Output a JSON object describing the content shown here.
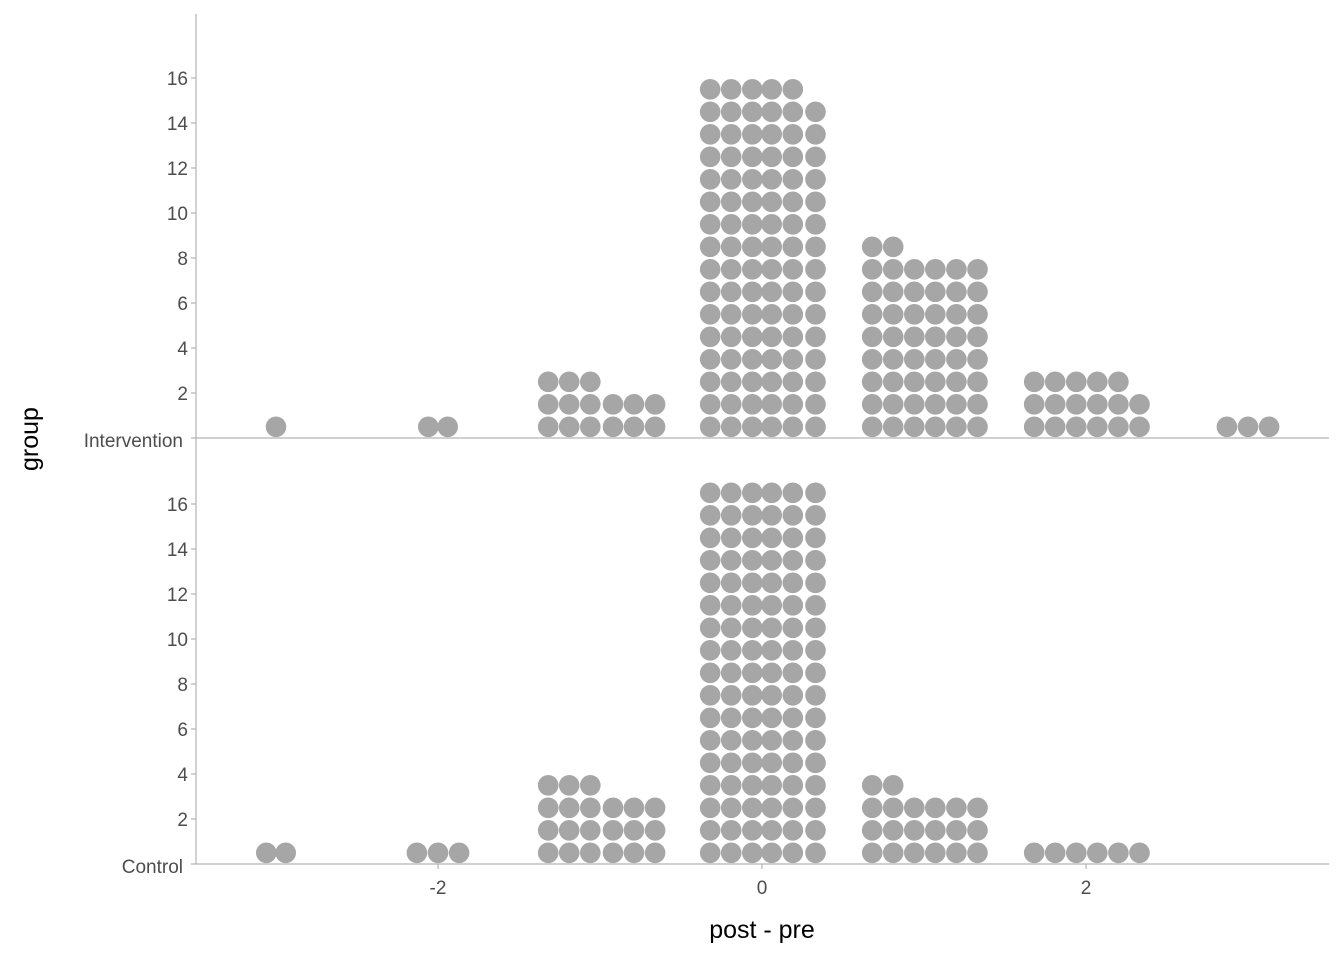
{
  "chart_data": {
    "type": "dotplot",
    "xlabel": "post - pre",
    "ylabel": "group",
    "x_ticks": [
      -2,
      0,
      2
    ],
    "xlim": [
      -3.5,
      3.5
    ],
    "groups": [
      "Control",
      "Intervention"
    ],
    "count_ticks": [
      2,
      4,
      6,
      8,
      10,
      12,
      14,
      16
    ],
    "count_range": [
      0,
      19
    ],
    "dot_color": "#a6a6a6",
    "axis_color": "#b3b3b3",
    "series": [
      {
        "name": "Intervention",
        "bins": [
          {
            "x": -3.0,
            "count": 1
          },
          {
            "x": -2.0,
            "count": 1
          },
          {
            "x": -1.0,
            "count": 3
          },
          {
            "x": 0.0,
            "count": 16
          },
          {
            "x": 1.0,
            "count": 9
          },
          {
            "x": 2.0,
            "count": 3
          },
          {
            "x": 3.0,
            "count": 1
          }
        ],
        "columns": [
          {
            "x": -3.0,
            "count": 1
          },
          {
            "x": -2.06,
            "count": 1
          },
          {
            "x": -1.94,
            "count": 1
          },
          {
            "x": -1.32,
            "count": 3
          },
          {
            "x": -1.19,
            "count": 3
          },
          {
            "x": -1.06,
            "count": 3
          },
          {
            "x": -0.92,
            "count": 2
          },
          {
            "x": -0.79,
            "count": 2
          },
          {
            "x": -0.66,
            "count": 2
          },
          {
            "x": -0.32,
            "count": 16
          },
          {
            "x": -0.19,
            "count": 16
          },
          {
            "x": -0.06,
            "count": 16
          },
          {
            "x": 0.06,
            "count": 16
          },
          {
            "x": 0.19,
            "count": 16
          },
          {
            "x": 0.33,
            "count": 15
          },
          {
            "x": 0.68,
            "count": 9
          },
          {
            "x": 0.81,
            "count": 9
          },
          {
            "x": 0.94,
            "count": 8
          },
          {
            "x": 1.07,
            "count": 8
          },
          {
            "x": 1.2,
            "count": 8
          },
          {
            "x": 1.33,
            "count": 8
          },
          {
            "x": 1.68,
            "count": 3
          },
          {
            "x": 1.81,
            "count": 3
          },
          {
            "x": 1.94,
            "count": 3
          },
          {
            "x": 2.07,
            "count": 3
          },
          {
            "x": 2.2,
            "count": 3
          },
          {
            "x": 2.33,
            "count": 2
          },
          {
            "x": 2.87,
            "count": 1
          },
          {
            "x": 3.0,
            "count": 1
          },
          {
            "x": 3.13,
            "count": 1
          }
        ]
      },
      {
        "name": "Control",
        "bins": [
          {
            "x": -3.0,
            "count": 1
          },
          {
            "x": -2.0,
            "count": 1
          },
          {
            "x": -1.0,
            "count": 4
          },
          {
            "x": 0.0,
            "count": 17
          },
          {
            "x": 1.0,
            "count": 4
          },
          {
            "x": 2.0,
            "count": 1
          }
        ],
        "columns": [
          {
            "x": -3.06,
            "count": 1
          },
          {
            "x": -2.94,
            "count": 1
          },
          {
            "x": -2.13,
            "count": 1
          },
          {
            "x": -2.0,
            "count": 1
          },
          {
            "x": -1.87,
            "count": 1
          },
          {
            "x": -1.32,
            "count": 4
          },
          {
            "x": -1.19,
            "count": 4
          },
          {
            "x": -1.06,
            "count": 4
          },
          {
            "x": -0.92,
            "count": 3
          },
          {
            "x": -0.79,
            "count": 3
          },
          {
            "x": -0.66,
            "count": 3
          },
          {
            "x": -0.32,
            "count": 17
          },
          {
            "x": -0.19,
            "count": 17
          },
          {
            "x": -0.06,
            "count": 17
          },
          {
            "x": 0.06,
            "count": 17
          },
          {
            "x": 0.19,
            "count": 17
          },
          {
            "x": 0.33,
            "count": 17
          },
          {
            "x": 0.68,
            "count": 4
          },
          {
            "x": 0.81,
            "count": 4
          },
          {
            "x": 0.94,
            "count": 3
          },
          {
            "x": 1.07,
            "count": 3
          },
          {
            "x": 1.2,
            "count": 3
          },
          {
            "x": 1.33,
            "count": 3
          },
          {
            "x": 1.68,
            "count": 1
          },
          {
            "x": 1.81,
            "count": 1
          },
          {
            "x": 1.94,
            "count": 1
          },
          {
            "x": 2.07,
            "count": 1
          },
          {
            "x": 2.2,
            "count": 1
          },
          {
            "x": 2.33,
            "count": 1
          }
        ]
      }
    ]
  }
}
